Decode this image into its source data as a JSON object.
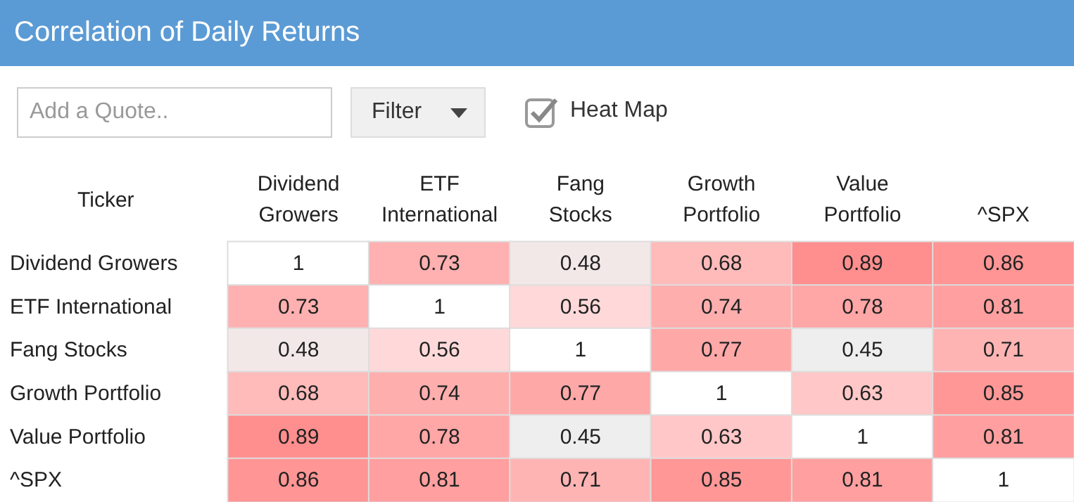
{
  "chart_data": {
    "type": "heatmap",
    "title": "Correlation of Daily Returns",
    "ylabel": "Ticker",
    "annotations": [
      "Add a Quote..",
      "Filter",
      "Heat Map"
    ],
    "data_labels": true,
    "categories": [
      "Dividend Growers",
      "ETF International",
      "Fang Stocks",
      "Growth Portfolio",
      "Value Portfolio",
      "^SPX"
    ],
    "y_categories": [
      "Dividend Growers",
      "ETF International",
      "Fang Stocks",
      "Growth Portfolio",
      "Value Portfolio",
      "^SPX"
    ],
    "cells": [
      [
        1,
        0.73,
        0.48,
        0.68,
        0.89,
        0.86
      ],
      [
        0.73,
        1,
        0.56,
        0.74,
        0.78,
        0.81
      ],
      [
        0.48,
        0.56,
        1,
        0.77,
        0.45,
        0.71
      ],
      [
        0.68,
        0.74,
        0.77,
        1,
        0.63,
        0.85
      ],
      [
        0.89,
        0.78,
        0.45,
        0.63,
        1,
        0.81
      ],
      [
        0.86,
        0.81,
        0.71,
        0.85,
        0.81,
        1
      ]
    ]
  }
}
